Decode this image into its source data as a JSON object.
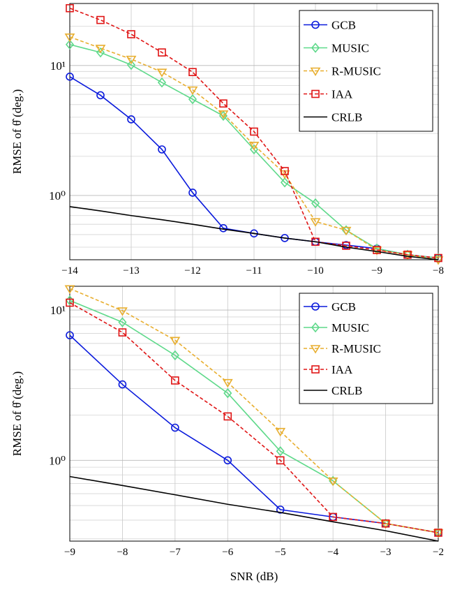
{
  "chart_data": [
    {
      "type": "line",
      "log_y": true,
      "grid": true,
      "minor_grid": true,
      "legend_loc": "upper right",
      "ylabel": "RMSE of θ̂ (deg.)",
      "xlim": [
        -14,
        -8
      ],
      "ylim": [
        0.32,
        30
      ],
      "xticks": [
        {
          "value": -14,
          "label": "−14"
        },
        {
          "value": -13,
          "label": "−13"
        },
        {
          "value": -12,
          "label": "−12"
        },
        {
          "value": -11,
          "label": "−11"
        },
        {
          "value": -10,
          "label": "−10"
        },
        {
          "value": -9,
          "label": "−9"
        },
        {
          "value": -8,
          "label": "−8"
        }
      ],
      "yticks": [
        {
          "value": 1,
          "label": "10⁰"
        },
        {
          "value": 10,
          "label": "10¹"
        }
      ],
      "x": [
        -14,
        -13.5,
        -13,
        -12.5,
        -12,
        -11.5,
        -11,
        -10.5,
        -10,
        -9.5,
        -9,
        -8.5,
        -8
      ],
      "series": [
        {
          "name": "GCB",
          "color": "#0a1adc",
          "marker": "circle",
          "dash": false,
          "values": [
            8.2,
            5.9,
            3.85,
            2.26,
            1.05,
            0.56,
            0.51,
            0.47,
            0.44,
            0.415,
            0.39,
            0.35,
            0.33
          ]
        },
        {
          "name": "MUSIC",
          "color": "#5ed98a",
          "marker": "diamond",
          "dash": false,
          "values": [
            14.5,
            12.6,
            10.1,
            7.4,
            5.5,
            4.1,
            2.26,
            1.26,
            0.87,
            0.54,
            0.39,
            0.35,
            0.33
          ]
        },
        {
          "name": "R-MUSIC",
          "color": "#e8ae2e",
          "marker": "triangle",
          "dash": true,
          "values": [
            16.6,
            13.6,
            11.2,
            8.9,
            6.5,
            4.25,
            2.44,
            1.47,
            0.63,
            0.54,
            0.38,
            0.35,
            0.32
          ]
        },
        {
          "name": "IAA",
          "color": "#e01515",
          "marker": "square",
          "dash": true,
          "values": [
            27.6,
            22.4,
            17.4,
            12.6,
            8.9,
            5.1,
            3.1,
            1.54,
            0.44,
            0.41,
            0.38,
            0.35,
            0.33
          ]
        },
        {
          "name": "CRLB",
          "color": "#000000",
          "marker": "none",
          "dash": false,
          "values": [
            0.82,
            0.76,
            0.7,
            0.65,
            0.6,
            0.55,
            0.51,
            0.47,
            0.44,
            0.4,
            0.37,
            0.34,
            0.32
          ]
        }
      ]
    },
    {
      "type": "line",
      "log_y": true,
      "grid": true,
      "minor_grid": true,
      "legend_loc": "upper right",
      "ylabel": "RMSE of θ̂ (deg.)",
      "xlabel": "SNR (dB)",
      "xlim": [
        -9,
        -2
      ],
      "ylim": [
        0.29,
        14.4
      ],
      "xticks": [
        {
          "value": -9,
          "label": "−9"
        },
        {
          "value": -8,
          "label": "−8"
        },
        {
          "value": -7,
          "label": "−7"
        },
        {
          "value": -6,
          "label": "−6"
        },
        {
          "value": -5,
          "label": "−5"
        },
        {
          "value": -4,
          "label": "−4"
        },
        {
          "value": -3,
          "label": "−3"
        },
        {
          "value": -2,
          "label": "−2"
        }
      ],
      "yticks": [
        {
          "value": 1,
          "label": "10⁰"
        },
        {
          "value": 10,
          "label": "10¹"
        }
      ],
      "x": [
        -9,
        -8,
        -7,
        -6,
        -5,
        -4,
        -3,
        -2
      ],
      "series": [
        {
          "name": "GCB",
          "color": "#0a1adc",
          "marker": "circle",
          "dash": false,
          "values": [
            6.8,
            3.2,
            1.65,
            1.0,
            0.47,
            0.42,
            0.38,
            0.33
          ]
        },
        {
          "name": "MUSIC",
          "color": "#5ed98a",
          "marker": "diamond",
          "dash": false,
          "values": [
            11.6,
            8.3,
            5.0,
            2.8,
            1.15,
            0.73,
            0.38,
            0.33
          ]
        },
        {
          "name": "R-MUSIC",
          "color": "#e8ae2e",
          "marker": "triangle",
          "dash": true,
          "values": [
            13.9,
            9.9,
            6.3,
            3.3,
            1.56,
            0.73,
            0.38,
            0.33
          ]
        },
        {
          "name": "IAA",
          "color": "#e01515",
          "marker": "square",
          "dash": true,
          "values": [
            11.2,
            7.1,
            3.4,
            1.96,
            1.0,
            0.42,
            0.38,
            0.33
          ]
        },
        {
          "name": "CRLB",
          "color": "#000000",
          "marker": "none",
          "dash": false,
          "values": [
            0.78,
            0.68,
            0.59,
            0.51,
            0.45,
            0.39,
            0.34,
            0.29
          ]
        }
      ]
    }
  ]
}
